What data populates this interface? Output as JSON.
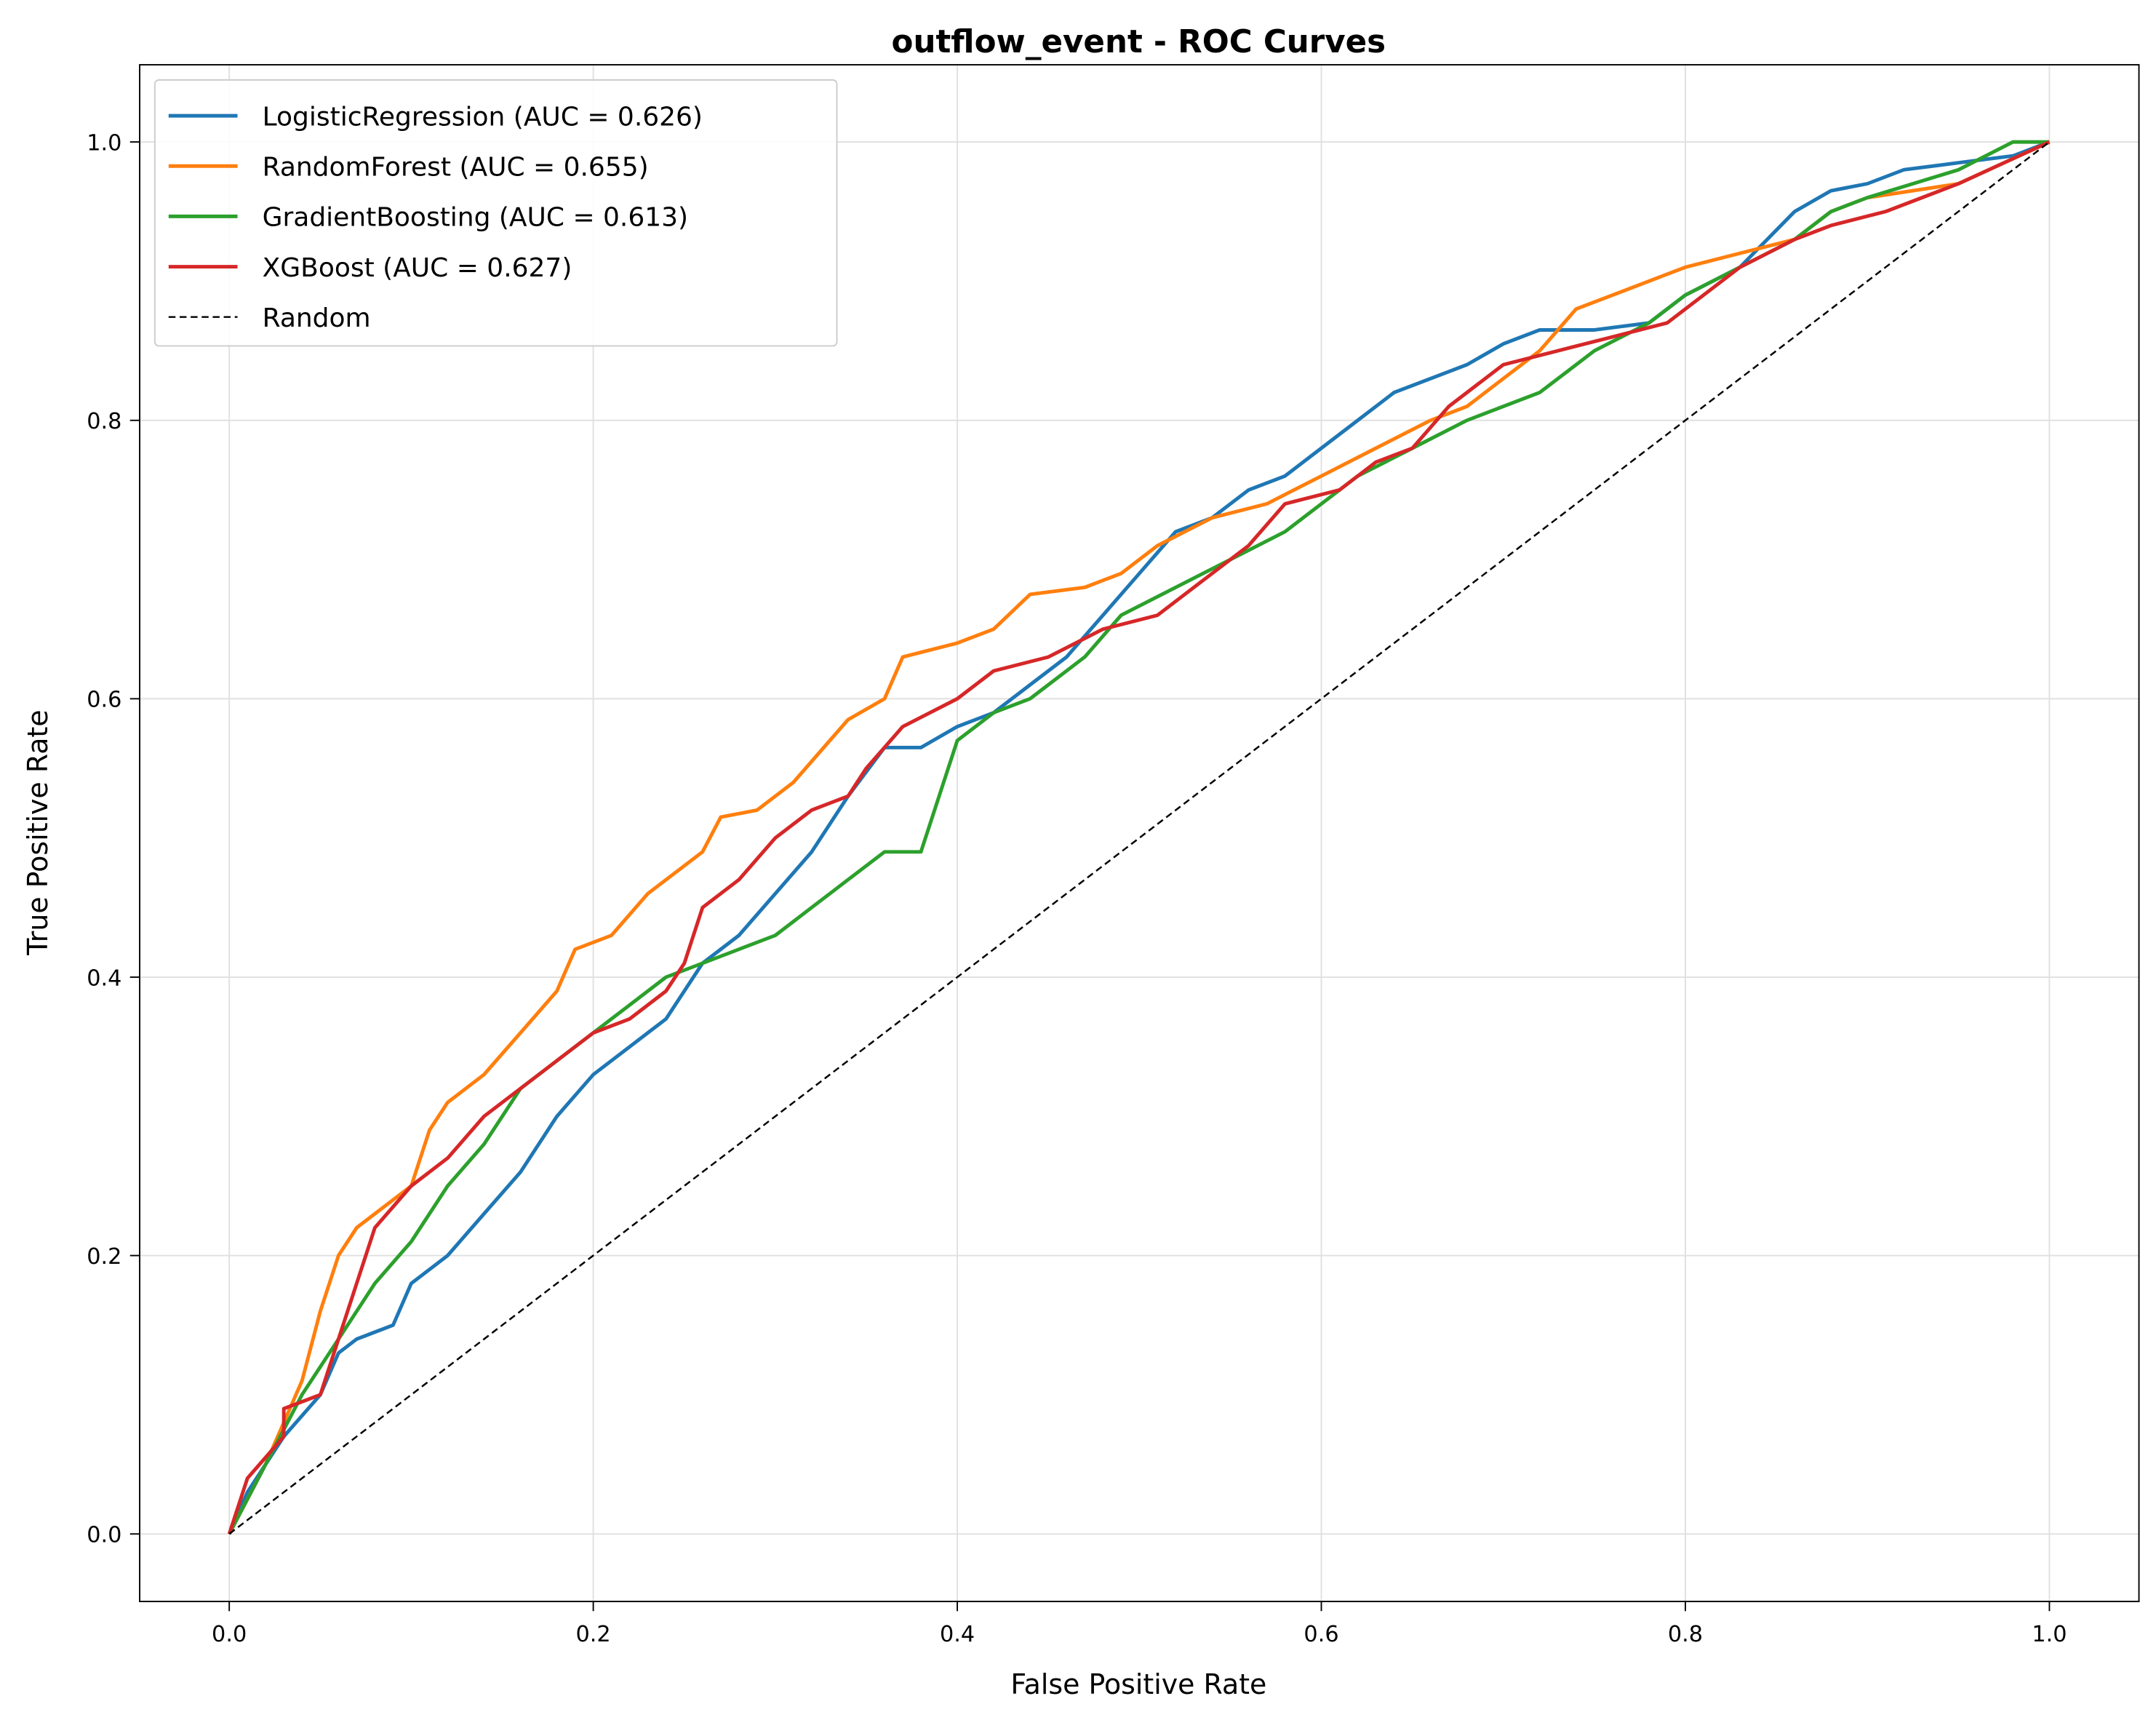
{
  "chart_data": {
    "type": "line",
    "title": "outflow_event - ROC Curves",
    "xlabel": "False Positive Rate",
    "ylabel": "True Positive Rate",
    "xlim": [
      -0.05,
      1.05
    ],
    "ylim": [
      -0.05,
      1.05
    ],
    "xticks": [
      "0.0",
      "0.2",
      "0.4",
      "0.6",
      "0.8",
      "1.0"
    ],
    "yticks": [
      "0.0",
      "0.2",
      "0.4",
      "0.6",
      "0.8",
      "1.0"
    ],
    "grid": true,
    "legend_position": "top-left",
    "series": [
      {
        "name": "LogisticRegression (AUC = 0.626)",
        "color": "#1f77b4",
        "style": "solid",
        "points": [
          [
            0,
            0
          ],
          [
            0.01,
            0.03
          ],
          [
            0.02,
            0.05
          ],
          [
            0.03,
            0.07
          ],
          [
            0.05,
            0.1
          ],
          [
            0.06,
            0.13
          ],
          [
            0.07,
            0.14
          ],
          [
            0.09,
            0.15
          ],
          [
            0.1,
            0.18
          ],
          [
            0.12,
            0.2
          ],
          [
            0.14,
            0.23
          ],
          [
            0.16,
            0.26
          ],
          [
            0.18,
            0.3
          ],
          [
            0.2,
            0.33
          ],
          [
            0.22,
            0.35
          ],
          [
            0.24,
            0.37
          ],
          [
            0.26,
            0.41
          ],
          [
            0.28,
            0.43
          ],
          [
            0.3,
            0.46
          ],
          [
            0.32,
            0.49
          ],
          [
            0.34,
            0.53
          ],
          [
            0.36,
            0.565
          ],
          [
            0.38,
            0.565
          ],
          [
            0.4,
            0.58
          ],
          [
            0.42,
            0.59
          ],
          [
            0.44,
            0.61
          ],
          [
            0.46,
            0.63
          ],
          [
            0.48,
            0.66
          ],
          [
            0.5,
            0.69
          ],
          [
            0.52,
            0.72
          ],
          [
            0.54,
            0.73
          ],
          [
            0.56,
            0.75
          ],
          [
            0.58,
            0.76
          ],
          [
            0.6,
            0.78
          ],
          [
            0.62,
            0.8
          ],
          [
            0.64,
            0.82
          ],
          [
            0.66,
            0.83
          ],
          [
            0.68,
            0.84
          ],
          [
            0.7,
            0.855
          ],
          [
            0.72,
            0.865
          ],
          [
            0.75,
            0.865
          ],
          [
            0.78,
            0.87
          ],
          [
            0.8,
            0.89
          ],
          [
            0.83,
            0.91
          ],
          [
            0.86,
            0.95
          ],
          [
            0.88,
            0.965
          ],
          [
            0.9,
            0.97
          ],
          [
            0.92,
            0.98
          ],
          [
            0.95,
            0.985
          ],
          [
            0.98,
            0.99
          ],
          [
            1,
            1
          ]
        ]
      },
      {
        "name": "RandomForest (AUC = 0.655)",
        "color": "#ff7f0e",
        "style": "solid",
        "points": [
          [
            0,
            0
          ],
          [
            0.02,
            0.05
          ],
          [
            0.04,
            0.11
          ],
          [
            0.05,
            0.16
          ],
          [
            0.06,
            0.2
          ],
          [
            0.07,
            0.22
          ],
          [
            0.08,
            0.23
          ],
          [
            0.1,
            0.25
          ],
          [
            0.11,
            0.29
          ],
          [
            0.12,
            0.31
          ],
          [
            0.14,
            0.33
          ],
          [
            0.16,
            0.36
          ],
          [
            0.18,
            0.39
          ],
          [
            0.19,
            0.42
          ],
          [
            0.21,
            0.43
          ],
          [
            0.23,
            0.46
          ],
          [
            0.25,
            0.48
          ],
          [
            0.26,
            0.49
          ],
          [
            0.27,
            0.515
          ],
          [
            0.29,
            0.52
          ],
          [
            0.31,
            0.54
          ],
          [
            0.33,
            0.57
          ],
          [
            0.34,
            0.585
          ],
          [
            0.36,
            0.6
          ],
          [
            0.37,
            0.63
          ],
          [
            0.4,
            0.64
          ],
          [
            0.42,
            0.65
          ],
          [
            0.44,
            0.675
          ],
          [
            0.47,
            0.68
          ],
          [
            0.49,
            0.69
          ],
          [
            0.51,
            0.71
          ],
          [
            0.54,
            0.73
          ],
          [
            0.57,
            0.74
          ],
          [
            0.6,
            0.76
          ],
          [
            0.63,
            0.78
          ],
          [
            0.66,
            0.8
          ],
          [
            0.68,
            0.81
          ],
          [
            0.7,
            0.83
          ],
          [
            0.72,
            0.85
          ],
          [
            0.74,
            0.88
          ],
          [
            0.76,
            0.89
          ],
          [
            0.78,
            0.9
          ],
          [
            0.8,
            0.91
          ],
          [
            0.83,
            0.92
          ],
          [
            0.86,
            0.93
          ],
          [
            0.88,
            0.95
          ],
          [
            0.9,
            0.96
          ],
          [
            0.95,
            0.97
          ],
          [
            1,
            1
          ]
        ]
      },
      {
        "name": "GradientBoosting (AUC = 0.613)",
        "color": "#2ca02c",
        "style": "solid",
        "points": [
          [
            0,
            0
          ],
          [
            0.02,
            0.05
          ],
          [
            0.04,
            0.1
          ],
          [
            0.06,
            0.14
          ],
          [
            0.08,
            0.18
          ],
          [
            0.1,
            0.21
          ],
          [
            0.12,
            0.25
          ],
          [
            0.14,
            0.28
          ],
          [
            0.16,
            0.32
          ],
          [
            0.18,
            0.34
          ],
          [
            0.2,
            0.36
          ],
          [
            0.22,
            0.38
          ],
          [
            0.24,
            0.4
          ],
          [
            0.26,
            0.41
          ],
          [
            0.28,
            0.42
          ],
          [
            0.3,
            0.43
          ],
          [
            0.32,
            0.45
          ],
          [
            0.34,
            0.47
          ],
          [
            0.36,
            0.49
          ],
          [
            0.38,
            0.49
          ],
          [
            0.39,
            0.53
          ],
          [
            0.4,
            0.57
          ],
          [
            0.42,
            0.59
          ],
          [
            0.44,
            0.6
          ],
          [
            0.47,
            0.63
          ],
          [
            0.49,
            0.66
          ],
          [
            0.52,
            0.68
          ],
          [
            0.55,
            0.7
          ],
          [
            0.58,
            0.72
          ],
          [
            0.6,
            0.74
          ],
          [
            0.62,
            0.76
          ],
          [
            0.65,
            0.78
          ],
          [
            0.68,
            0.8
          ],
          [
            0.7,
            0.81
          ],
          [
            0.72,
            0.82
          ],
          [
            0.75,
            0.85
          ],
          [
            0.78,
            0.87
          ],
          [
            0.8,
            0.89
          ],
          [
            0.83,
            0.91
          ],
          [
            0.86,
            0.93
          ],
          [
            0.88,
            0.95
          ],
          [
            0.9,
            0.96
          ],
          [
            0.95,
            0.98
          ],
          [
            0.98,
            1
          ],
          [
            1,
            1
          ]
        ]
      },
      {
        "name": "XGBoost (AUC = 0.627)",
        "color": "#d62728",
        "style": "solid",
        "points": [
          [
            0,
            0
          ],
          [
            0.01,
            0.04
          ],
          [
            0.03,
            0.07
          ],
          [
            0.03,
            0.09
          ],
          [
            0.05,
            0.1
          ],
          [
            0.06,
            0.14
          ],
          [
            0.07,
            0.18
          ],
          [
            0.08,
            0.22
          ],
          [
            0.1,
            0.25
          ],
          [
            0.12,
            0.27
          ],
          [
            0.14,
            0.3
          ],
          [
            0.16,
            0.32
          ],
          [
            0.18,
            0.34
          ],
          [
            0.2,
            0.36
          ],
          [
            0.22,
            0.37
          ],
          [
            0.24,
            0.39
          ],
          [
            0.25,
            0.41
          ],
          [
            0.26,
            0.45
          ],
          [
            0.28,
            0.47
          ],
          [
            0.3,
            0.5
          ],
          [
            0.32,
            0.52
          ],
          [
            0.34,
            0.53
          ],
          [
            0.35,
            0.55
          ],
          [
            0.37,
            0.58
          ],
          [
            0.4,
            0.6
          ],
          [
            0.42,
            0.62
          ],
          [
            0.45,
            0.63
          ],
          [
            0.48,
            0.65
          ],
          [
            0.51,
            0.66
          ],
          [
            0.53,
            0.68
          ],
          [
            0.56,
            0.71
          ],
          [
            0.58,
            0.74
          ],
          [
            0.61,
            0.75
          ],
          [
            0.63,
            0.77
          ],
          [
            0.65,
            0.78
          ],
          [
            0.67,
            0.81
          ],
          [
            0.7,
            0.84
          ],
          [
            0.73,
            0.85
          ],
          [
            0.76,
            0.86
          ],
          [
            0.79,
            0.87
          ],
          [
            0.81,
            0.89
          ],
          [
            0.83,
            0.91
          ],
          [
            0.86,
            0.93
          ],
          [
            0.88,
            0.94
          ],
          [
            0.91,
            0.95
          ],
          [
            0.95,
            0.97
          ],
          [
            1,
            1
          ]
        ]
      },
      {
        "name": "Random",
        "color": "#000000",
        "style": "dashed",
        "points": [
          [
            0,
            0
          ],
          [
            1,
            1
          ]
        ]
      }
    ]
  }
}
